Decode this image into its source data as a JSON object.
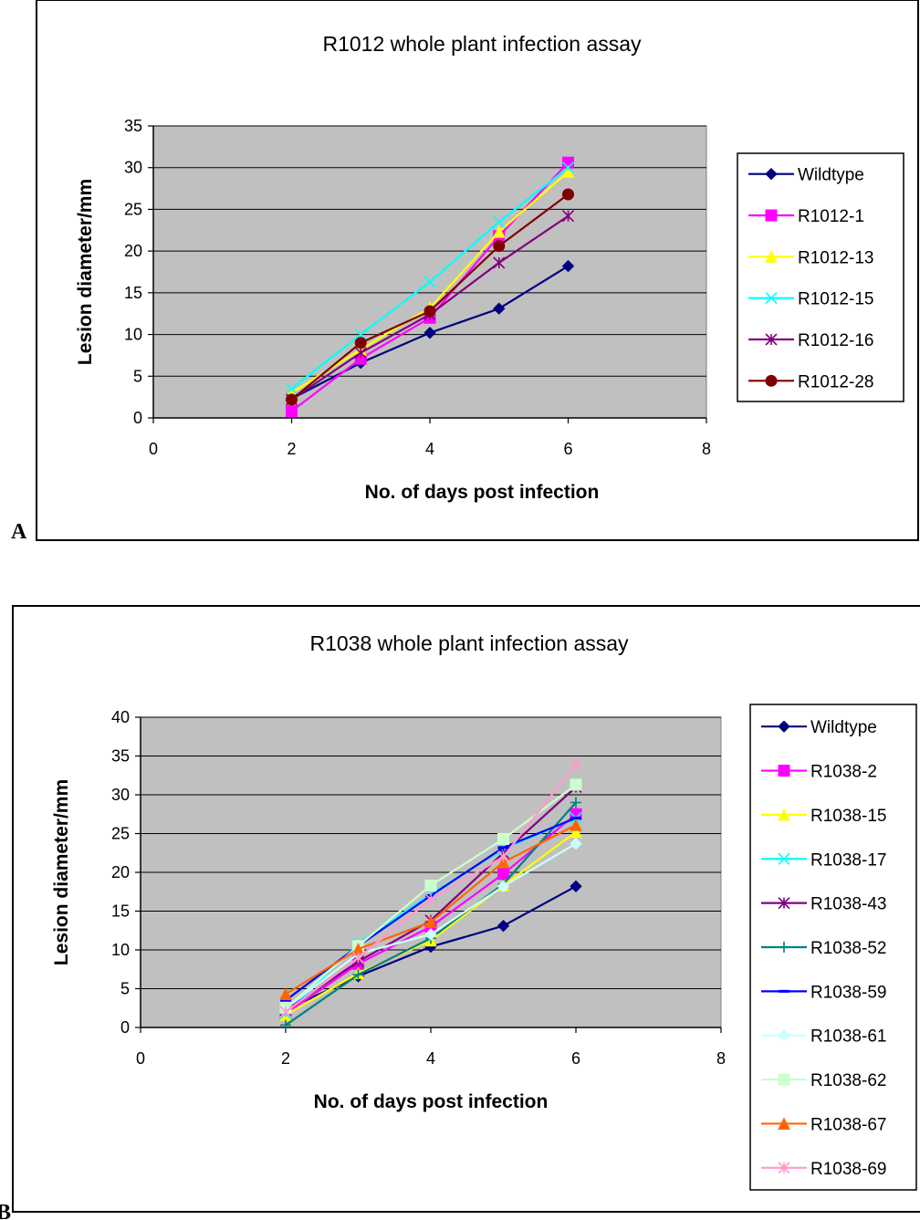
{
  "colors": {
    "plot_bg": "#c0c0c0",
    "gridline": "#000000",
    "frame": "#000000"
  },
  "chart_data": [
    {
      "panel_label": "A",
      "type": "line",
      "title": "R1012 whole plant infection assay",
      "xlabel": "No. of days post infection",
      "ylabel": "Lesion diameter/mm",
      "xlim": [
        0,
        8
      ],
      "ylim": [
        0,
        35
      ],
      "xticks": [
        0,
        2,
        4,
        6,
        8
      ],
      "yticks": [
        0,
        5,
        10,
        15,
        20,
        25,
        30,
        35
      ],
      "grid": "horizontal",
      "legend_position": "right",
      "x": [
        2,
        3,
        4,
        5,
        6
      ],
      "series": [
        {
          "name": "Wildtype",
          "color": "#000080",
          "marker": "diamond",
          "values": [
            2.3,
            6.6,
            10.2,
            13.1,
            18.2
          ]
        },
        {
          "name": "R1012-1",
          "color": "#ff00ff",
          "marker": "square",
          "values": [
            0.8,
            7.1,
            12.0,
            21.8,
            30.6
          ]
        },
        {
          "name": "R1012-13",
          "color": "#ffff00",
          "marker": "triangle",
          "values": [
            3.0,
            8.2,
            13.2,
            22.3,
            29.5
          ]
        },
        {
          "name": "R1012-15",
          "color": "#00ffff",
          "marker": "x",
          "values": [
            3.5,
            10.0,
            16.3,
            23.5,
            30.0
          ]
        },
        {
          "name": "R1012-16",
          "color": "#800080",
          "marker": "star",
          "values": [
            2.2,
            7.8,
            12.4,
            18.6,
            24.2
          ]
        },
        {
          "name": "R1012-28",
          "color": "#800000",
          "marker": "circle",
          "values": [
            2.2,
            9.0,
            12.8,
            20.6,
            26.8
          ]
        }
      ]
    },
    {
      "panel_label": "B",
      "type": "line",
      "title": "R1038 whole plant infection assay",
      "xlabel": "No. of days post infection",
      "ylabel": "Lesion diameter/mm",
      "xlim": [
        0,
        8
      ],
      "ylim": [
        0,
        40
      ],
      "xticks": [
        0,
        2,
        4,
        6,
        8
      ],
      "yticks": [
        0,
        5,
        10,
        15,
        20,
        25,
        30,
        35,
        40
      ],
      "grid": "horizontal",
      "legend_position": "right",
      "x": [
        2,
        3,
        4,
        5,
        6
      ],
      "series": [
        {
          "name": "Wildtype",
          "color": "#000080",
          "marker": "diamond",
          "values": [
            2.3,
            6.6,
            10.4,
            13.1,
            18.2
          ]
        },
        {
          "name": "R1038-2",
          "color": "#ff00ff",
          "marker": "square",
          "values": [
            1.8,
            8.2,
            13.0,
            19.8,
            27.5
          ]
        },
        {
          "name": "R1038-15",
          "color": "#ffff00",
          "marker": "triangle",
          "values": [
            1.6,
            7.0,
            11.2,
            18.3,
            25.2
          ]
        },
        {
          "name": "R1038-17",
          "color": "#00ffff",
          "marker": "x",
          "values": [
            1.8,
            10.8,
            17.2,
            23.0,
            27.0
          ]
        },
        {
          "name": "R1038-43",
          "color": "#800080",
          "marker": "star",
          "values": [
            2.2,
            8.5,
            13.8,
            22.5,
            31.0
          ]
        },
        {
          "name": "R1038-52",
          "color": "#008080",
          "marker": "plus",
          "values": [
            0.3,
            6.8,
            11.5,
            18.5,
            29.0
          ]
        },
        {
          "name": "R1038-59",
          "color": "#0000ff",
          "marker": "dash",
          "values": [
            3.5,
            10.5,
            17.0,
            23.2,
            27.0
          ]
        },
        {
          "name": "R1038-61",
          "color": "#ccffff",
          "marker": "diamond",
          "values": [
            2.5,
            9.5,
            12.0,
            18.2,
            23.7
          ]
        },
        {
          "name": "R1038-62",
          "color": "#ccffcc",
          "marker": "square",
          "values": [
            2.5,
            10.5,
            18.3,
            24.3,
            31.3
          ]
        },
        {
          "name": "R1038-67",
          "color": "#ff6600",
          "marker": "triangle",
          "values": [
            4.3,
            10.1,
            13.6,
            21.3,
            26.1
          ]
        },
        {
          "name": "R1038-69",
          "color": "#ff99cc",
          "marker": "star",
          "values": [
            2.0,
            9.0,
            16.5,
            22.0,
            34.0
          ]
        }
      ]
    }
  ]
}
